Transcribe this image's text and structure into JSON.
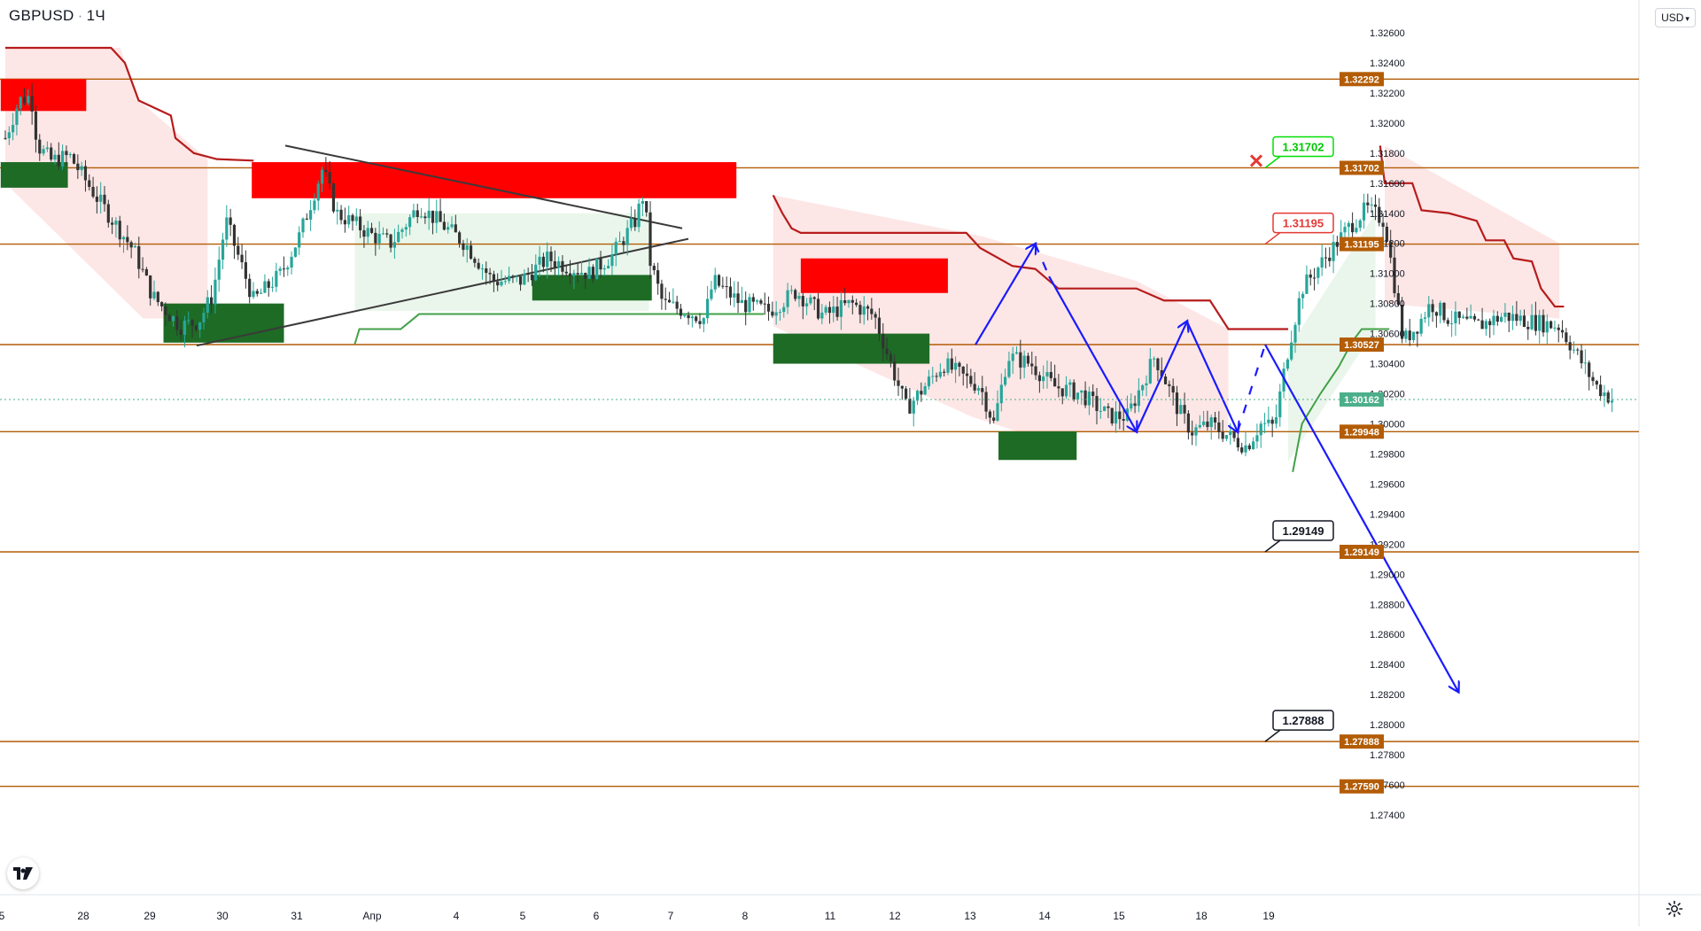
{
  "header": {
    "symbol": "GBPUSD",
    "interval": "1Ч"
  },
  "currency_button": "USD",
  "colors": {
    "level_line": "#b35c06",
    "resistance_zone": "#ff0000",
    "support_zone": "#1e6b25",
    "bear_trail": "#b71c1c",
    "bull_trail": "#43a047",
    "bear_fill": "#fde3e3",
    "bull_fill": "#e8f5e9",
    "candle_up": "#26a69a",
    "candle_down": "#333333",
    "projection": "#1a1aff",
    "price_badge": "#4caf8a"
  },
  "chart_data": {
    "type": "candlestick",
    "symbol": "GBPUSD",
    "timeframe": "1H",
    "y_axis": {
      "min": 1.274,
      "max": 1.326,
      "ticks": [
        "1.32600",
        "1.32400",
        "1.32200",
        "1.32000",
        "1.31800",
        "1.31600",
        "1.31400",
        "1.31200",
        "1.31000",
        "1.30800",
        "1.30600",
        "1.30400",
        "1.30200",
        "1.30000",
        "1.29800",
        "1.29600",
        "1.29400",
        "1.29200",
        "1.29000",
        "1.28800",
        "1.28600",
        "1.28400",
        "1.28200",
        "1.28000",
        "1.27800",
        "1.27600",
        "1.27400"
      ]
    },
    "x_axis": {
      "labels": [
        "5",
        "28",
        "29",
        "30",
        "31",
        "Апр",
        "4",
        "5",
        "6",
        "7",
        "8",
        "11",
        "12",
        "13",
        "14",
        "15",
        "18",
        "19"
      ]
    },
    "levels": [
      {
        "value": 1.32292,
        "label": "1.32292"
      },
      {
        "value": 1.31702,
        "label": "1.31702"
      },
      {
        "value": 1.31195,
        "label": "1.31195"
      },
      {
        "value": 1.30527,
        "label": "1.30527"
      },
      {
        "value": 1.29948,
        "label": "1.29948"
      },
      {
        "value": 1.29149,
        "label": "1.29149"
      },
      {
        "value": 1.27888,
        "label": "1.27888"
      },
      {
        "value": 1.2759,
        "label": "1.27590"
      }
    ],
    "current_price": {
      "value": 1.30162,
      "label": "1.30162"
    },
    "callouts": [
      {
        "label": "1.31702",
        "style": "green",
        "level": 1.31702
      },
      {
        "label": "1.31195",
        "style": "red",
        "level": 1.31195
      },
      {
        "label": "1.29149",
        "style": "black",
        "level": 1.29149
      },
      {
        "label": "1.27888",
        "style": "black",
        "level": 1.27888
      }
    ],
    "resistance_zones": [
      {
        "from": "Mar 25",
        "to": "Mar 28",
        "low": 1.3208,
        "high": 1.32292
      },
      {
        "from": "Mar 29 PM",
        "to": "Apr 5 PM",
        "low": 1.315,
        "high": 1.3174
      },
      {
        "from": "Apr 6 PM",
        "to": "Apr 7 PM",
        "low": 1.3087,
        "high": 1.311
      }
    ],
    "support_zones": [
      {
        "from": "Mar 25",
        "to": "Mar 28",
        "low": 1.3157,
        "high": 1.3174
      },
      {
        "from": "Mar 28 PM",
        "to": "Mar 29 PM",
        "low": 1.3054,
        "high": 1.308
      },
      {
        "from": "Apr 4",
        "to": "Apr 5",
        "low": 1.3082,
        "high": 1.3099
      },
      {
        "from": "Apr 6",
        "to": "Apr 7 PM",
        "low": 1.304,
        "high": 1.306
      },
      {
        "from": "Apr 8 PM",
        "to": "Apr 11",
        "low": 1.2976,
        "high": 1.2995
      }
    ],
    "series": [
      {
        "name": "GBPUSD",
        "approx_path": [
          [
            0,
            1.319
          ],
          [
            0.15,
            1.3215
          ],
          [
            0.28,
            1.3218
          ],
          [
            0.35,
            1.3185
          ],
          [
            0.5,
            1.3175
          ],
          [
            0.7,
            1.3178
          ],
          [
            1.0,
            1.315
          ],
          [
            1.4,
            1.3115
          ],
          [
            1.6,
            1.3085
          ],
          [
            1.9,
            1.3065
          ],
          [
            2.1,
            1.3068
          ],
          [
            2.25,
            1.3085
          ],
          [
            2.4,
            1.3135
          ],
          [
            2.7,
            1.3082
          ],
          [
            3.0,
            1.31
          ],
          [
            3.2,
            1.3125
          ],
          [
            3.45,
            1.317
          ],
          [
            3.6,
            1.314
          ],
          [
            3.8,
            1.3133
          ],
          [
            4.0,
            1.3125
          ],
          [
            4.2,
            1.312
          ],
          [
            4.5,
            1.3145
          ],
          [
            4.7,
            1.3135
          ],
          [
            5.0,
            1.312
          ],
          [
            5.3,
            1.3095
          ],
          [
            5.6,
            1.3095
          ],
          [
            5.9,
            1.311
          ],
          [
            6.1,
            1.3105
          ],
          [
            6.35,
            1.31
          ],
          [
            6.6,
            1.3112
          ],
          [
            6.85,
            1.3135
          ],
          [
            6.95,
            1.3155
          ],
          [
            7.0,
            1.311
          ],
          [
            7.15,
            1.308
          ],
          [
            7.4,
            1.3075
          ],
          [
            7.6,
            1.307
          ],
          [
            7.7,
            1.3095
          ],
          [
            8.0,
            1.308
          ],
          [
            8.3,
            1.3075
          ],
          [
            8.6,
            1.3088
          ],
          [
            8.9,
            1.3072
          ],
          [
            9.2,
            1.308
          ],
          [
            9.45,
            1.3072
          ],
          [
            9.6,
            1.3045
          ],
          [
            9.8,
            1.301
          ],
          [
            10.0,
            1.3025
          ],
          [
            10.2,
            1.304
          ],
          [
            10.45,
            1.303
          ],
          [
            10.6,
            1.3025
          ],
          [
            10.75,
            1.3
          ],
          [
            10.9,
            1.3045
          ],
          [
            11.15,
            1.304
          ],
          [
            11.4,
            1.3025
          ],
          [
            11.7,
            1.302
          ],
          [
            12.0,
            1.3005
          ],
          [
            12.2,
            1.3005
          ],
          [
            12.5,
            1.3045
          ],
          [
            12.75,
            1.301
          ],
          [
            12.9,
            1.2995
          ],
          [
            13.1,
            1.3
          ],
          [
            13.35,
            1.299
          ],
          [
            13.5,
            1.2985
          ],
          [
            13.65,
            1.3
          ],
          [
            13.8,
            1.2998
          ],
          [
            13.95,
            1.305
          ],
          [
            14.1,
            1.309
          ],
          [
            14.35,
            1.311
          ],
          [
            14.6,
            1.313
          ],
          [
            14.8,
            1.3143
          ],
          [
            15.0,
            1.3135
          ],
          [
            15.1,
            1.3095
          ],
          [
            15.2,
            1.3055
          ],
          [
            15.35,
            1.3065
          ],
          [
            15.5,
            1.308
          ],
          [
            15.7,
            1.307
          ],
          [
            16.0,
            1.3065
          ],
          [
            16.3,
            1.3072
          ],
          [
            16.6,
            1.3068
          ],
          [
            16.9,
            1.3065
          ],
          [
            17.1,
            1.3045
          ],
          [
            17.3,
            1.3025
          ],
          [
            17.5,
            1.3015
          ]
        ]
      }
    ],
    "projections": [
      {
        "points": [
          [
            10.55,
            1.30527
          ],
          [
            11.2,
            1.31195
          ]
        ],
        "dashed": false
      },
      {
        "points": [
          [
            11.2,
            1.31195
          ],
          [
            11.35,
            1.3098
          ]
        ],
        "dashed": true
      },
      {
        "points": [
          [
            11.35,
            1.3098
          ],
          [
            12.3,
            1.2995
          ]
        ],
        "dashed": false
      },
      {
        "points": [
          [
            12.3,
            1.2995
          ],
          [
            12.85,
            1.3068
          ]
        ],
        "dashed": false
      },
      {
        "points": [
          [
            12.85,
            1.3068
          ],
          [
            13.4,
            1.29948
          ]
        ],
        "dashed": false
      },
      {
        "points": [
          [
            13.4,
            1.29948
          ],
          [
            13.7,
            1.30527
          ]
        ],
        "dashed": true
      },
      {
        "points": [
          [
            13.7,
            1.30527
          ],
          [
            15.8,
            1.2822
          ]
        ],
        "dashed": false
      }
    ]
  }
}
